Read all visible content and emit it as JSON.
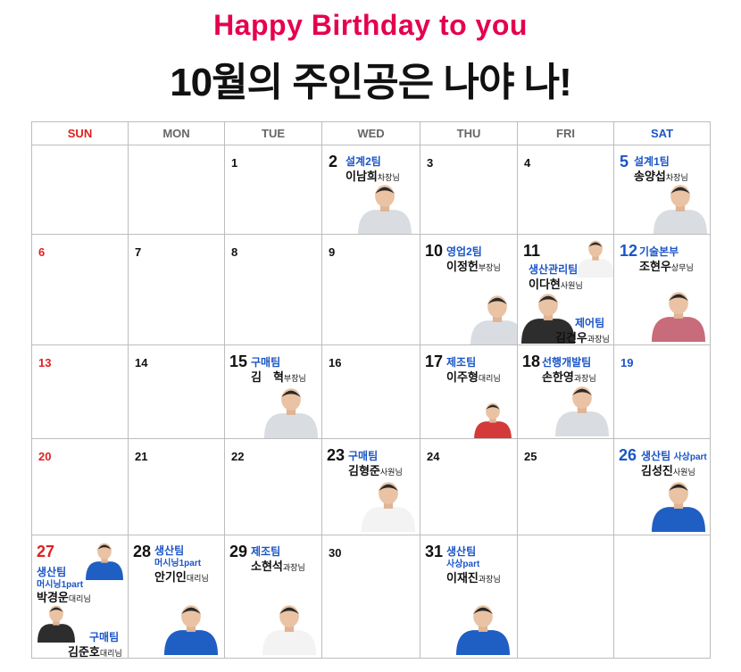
{
  "header": {
    "title": "Happy Birthday to you",
    "subtitle": "10월의 주인공은 나야 나!"
  },
  "weekdays": [
    "SUN",
    "MON",
    "TUE",
    "WED",
    "THU",
    "FRI",
    "SAT"
  ],
  "shirt_colors": {
    "gray": "#d9dde2",
    "blue": "#1f5fc4",
    "white": "#f3f3f3",
    "red": "#d43a3a",
    "check": "#c86b7a",
    "dark": "#2d2d2d"
  },
  "days": {
    "d1": {
      "num": "1"
    },
    "d2": {
      "num": "2",
      "team": "설계2팀",
      "name": "이남희",
      "title": "차장님"
    },
    "d3": {
      "num": "3"
    },
    "d4": {
      "num": "4"
    },
    "d5": {
      "num": "5",
      "team": "설계1팀",
      "name": "송양섭",
      "title": "차장님"
    },
    "d6": {
      "num": "6"
    },
    "d7": {
      "num": "7"
    },
    "d8": {
      "num": "8"
    },
    "d9": {
      "num": "9"
    },
    "d10": {
      "num": "10",
      "team": "영업2팀",
      "name": "이정헌",
      "title": "부장님"
    },
    "d11": {
      "num": "11",
      "team": "생산관리팀",
      "name": "이다현",
      "title": "사원님",
      "team2": "제어팀",
      "name2": "김건우",
      "title2": "과장님"
    },
    "d12": {
      "num": "12",
      "team": "기술본부",
      "name": "조현우",
      "title": "상무님"
    },
    "d13": {
      "num": "13"
    },
    "d14": {
      "num": "14"
    },
    "d15": {
      "num": "15",
      "team": "구매팀",
      "name": "김　혁",
      "title": "부장님"
    },
    "d16": {
      "num": "16"
    },
    "d17": {
      "num": "17",
      "team": "제조팀",
      "name": "이주형",
      "title": "대리님"
    },
    "d18": {
      "num": "18",
      "team": "선행개발팀",
      "name": "손한영",
      "title": "과장님"
    },
    "d19": {
      "num": "19"
    },
    "d20": {
      "num": "20"
    },
    "d21": {
      "num": "21"
    },
    "d22": {
      "num": "22"
    },
    "d23": {
      "num": "23",
      "team": "구매팀",
      "name": "김형준",
      "title": "사원님"
    },
    "d24": {
      "num": "24"
    },
    "d25": {
      "num": "25"
    },
    "d26": {
      "num": "26",
      "team": "생산팀",
      "part": "사상part",
      "name": "김성진",
      "title": "사원님"
    },
    "d27": {
      "num": "27",
      "team": "생산팀",
      "part": "머시닝1part",
      "name": "박경운",
      "title": "대리님",
      "team2": "구매팀",
      "name2": "김준호",
      "title2": "대리님"
    },
    "d28": {
      "num": "28",
      "team": "생산팀",
      "part": "머시닝1part",
      "name": "안기인",
      "title": "대리님"
    },
    "d29": {
      "num": "29",
      "team": "제조팀",
      "name": "소현석",
      "title": "과장님"
    },
    "d30": {
      "num": "30"
    },
    "d31": {
      "num": "31",
      "team": "생산팀",
      "part": "사상part",
      "name": "이재진",
      "title": "과장님"
    }
  }
}
